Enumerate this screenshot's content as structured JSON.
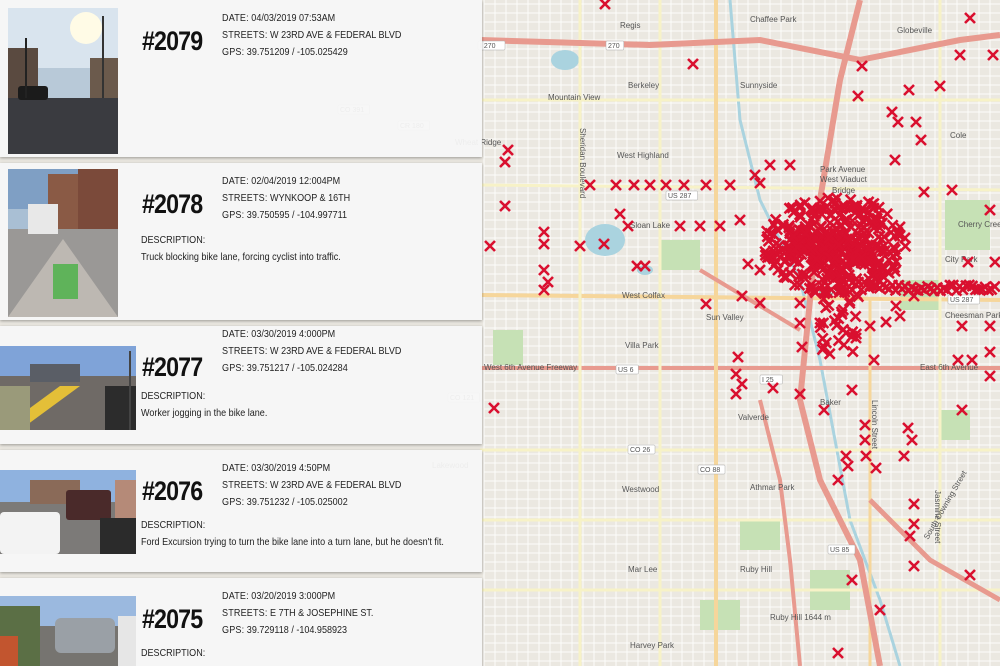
{
  "map": {
    "labels": [
      "Regis",
      "Chaffee Park",
      "Globeville",
      "Berkeley",
      "Sunnyside",
      "Mountain View",
      "Wheat Ridge",
      "Sheridan Boulevard",
      "West Highland",
      "Park Avenue",
      "West Viaduct",
      "Bridge",
      "Cole",
      "Sloan Lake",
      "Cherry Creek",
      "City Park",
      "Cheesman Park",
      "West Colfax",
      "Sun Valley",
      "Villa Park",
      "West 6th Avenue Freeway",
      "East 6th Avenue",
      "Baker",
      "Valverde",
      "Westwood",
      "Athmar Park",
      "Mar Lee",
      "Ruby Hill",
      "Ruby Hill 1644 m",
      "Harvey Park",
      "South Downing Street",
      "Lakewood",
      "Denver",
      "Lincoln Street",
      "Jasmine Street"
    ],
    "shields": [
      "270",
      "I 270",
      "I 25",
      "US 287",
      "US 6",
      "CO 391",
      "CR 180",
      "CO 121",
      "CO 26",
      "CO 88",
      "US 85",
      "US 287"
    ],
    "marker_icon": "x-mark-icon",
    "marker_color": "#d9102f"
  },
  "incidents": [
    {
      "number": "#2079",
      "date_label": "DATE:",
      "date": "04/03/2019 07:53AM",
      "streets_label": "STREETS:",
      "streets": "W 23RD AVE & FEDERAL BLVD",
      "gps_label": "GPS:",
      "gps": "39.751209 / -105.025429",
      "description_label": "",
      "description": ""
    },
    {
      "number": "#2078",
      "date_label": "DATE:",
      "date": "02/04/2019 12:004PM",
      "streets_label": "STREETS:",
      "streets": "WYNKOOP & 16TH",
      "gps_label": "GPS:",
      "gps": "39.750595 / -104.997711",
      "description_label": "DESCRIPTION:",
      "description": "Truck blocking bike lane, forcing cyclist into traffic."
    },
    {
      "number": "#2077",
      "date_label": "DATE:",
      "date": "03/30/2019 4:000PM",
      "streets_label": "STREETS:",
      "streets": "W 23RD AVE & FEDERAL BLVD",
      "gps_label": "GPS:",
      "gps": "39.751217 / -105.024284",
      "description_label": "DESCRIPTION:",
      "description": "Worker jogging in the bike lane."
    },
    {
      "number": "#2076",
      "date_label": "DATE:",
      "date": "03/30/2019 4:50PM",
      "streets_label": "STREETS:",
      "streets": "W 23RD AVE & FEDERAL BLVD",
      "gps_label": "GPS:",
      "gps": "39.751232 / -105.025002",
      "description_label": "DESCRIPTION:",
      "description": "Ford Excursion trying to turn the bike lane into a turn lane, but he doesn't fit."
    },
    {
      "number": "#2075",
      "date_label": "DATE:",
      "date": "03/20/2019 3:000PM",
      "streets_label": "STREETS:",
      "streets": "E 7TH & JOSEPHINE ST.",
      "gps_label": "GPS:",
      "gps": "39.729118 / -104.958923",
      "description_label": "DESCRIPTION:",
      "description": ""
    }
  ]
}
